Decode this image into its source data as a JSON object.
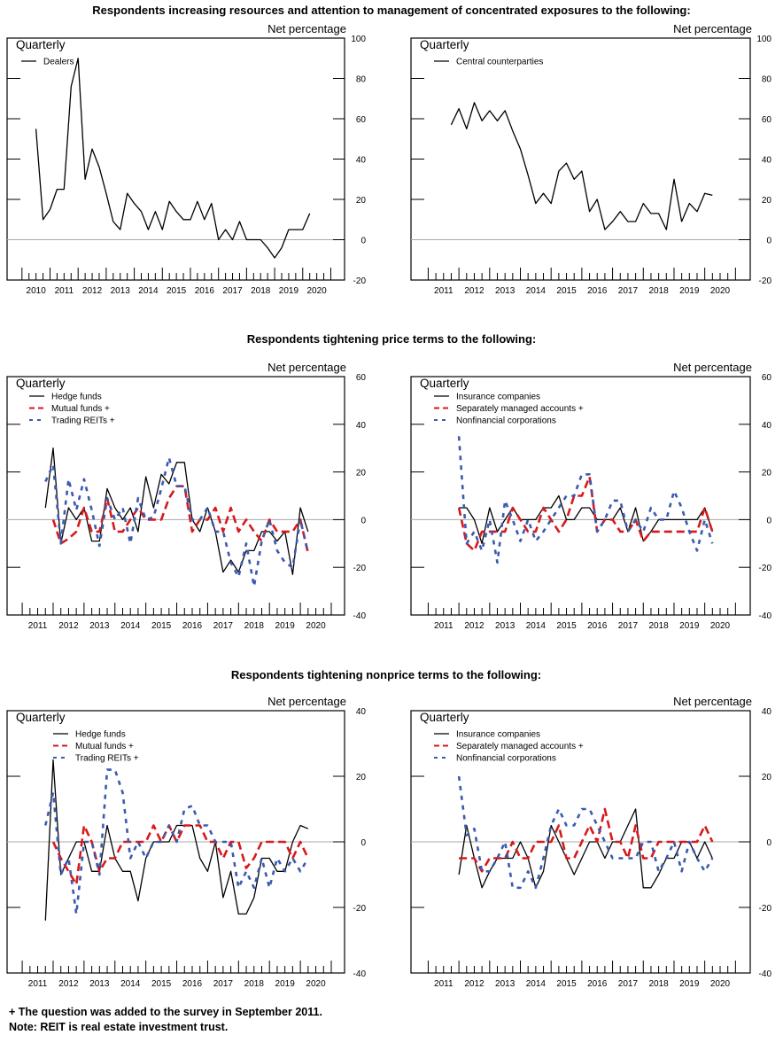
{
  "sections": [
    {
      "title": "Respondents increasing resources and attention to management of concentrated exposures to the following:"
    },
    {
      "title": "Respondents tightening price terms to the following:"
    },
    {
      "title": "Respondents tightening nonprice terms to the following:"
    }
  ],
  "footnotes": [
    "+ The question was added to the survey in September 2011.",
    "Note:  REIT is real estate investment trust."
  ],
  "colors": {
    "solid": "#000000",
    "red": "#d7191c",
    "blue": "#3a5aaf",
    "zero_line": "#aaaaaa"
  },
  "chart_data": [
    {
      "type": "line",
      "section": 0,
      "frequency_label": "Quarterly",
      "ylabel": "Net percentage",
      "ylim": [
        -20,
        100
      ],
      "yticks": [
        -20,
        0,
        20,
        40,
        60,
        80,
        100
      ],
      "xticks": [
        "2010",
        "2011",
        "2012",
        "2013",
        "2014",
        "2015",
        "2016",
        "2017",
        "2018",
        "2019",
        "2020"
      ],
      "grid": false,
      "legend": "top-left",
      "series": [
        {
          "name": "Dealers",
          "start": "2010-Q2",
          "style": "solid",
          "color": "#000000",
          "values": [
            55,
            10,
            15,
            25,
            25,
            76,
            90,
            30,
            45,
            36,
            23,
            9,
            5,
            23,
            18,
            14,
            5,
            14,
            5,
            19,
            14,
            10,
            10,
            19,
            10,
            18,
            0,
            5,
            0,
            9,
            0,
            0,
            0,
            -4,
            -9,
            -4,
            5,
            5,
            5,
            13
          ]
        }
      ]
    },
    {
      "type": "line",
      "section": 0,
      "frequency_label": "Quarterly",
      "ylabel": "Net percentage",
      "ylim": [
        -20,
        100
      ],
      "yticks": [
        -20,
        0,
        20,
        40,
        60,
        80,
        100
      ],
      "xticks": [
        "2011",
        "2012",
        "2013",
        "2014",
        "2015",
        "2016",
        "2017",
        "2018",
        "2019",
        "2020"
      ],
      "grid": false,
      "legend": "top-left",
      "series": [
        {
          "name": "Central counterparties",
          "start": "2011-Q3",
          "style": "solid",
          "color": "#000000",
          "values": [
            57,
            65,
            55,
            68,
            59,
            64,
            59,
            64,
            54,
            45,
            32,
            18,
            23,
            18,
            34,
            38,
            30,
            34,
            14,
            20,
            5,
            9,
            14,
            9,
            9,
            18,
            13,
            13,
            5,
            30,
            9,
            18,
            14,
            23,
            22
          ]
        }
      ]
    },
    {
      "type": "line",
      "section": 1,
      "frequency_label": "Quarterly",
      "ylabel": "Net percentage",
      "ylim": [
        -40,
        60
      ],
      "yticks": [
        -40,
        -20,
        0,
        20,
        40,
        60
      ],
      "xticks": [
        "2011",
        "2012",
        "2013",
        "2014",
        "2015",
        "2016",
        "2017",
        "2018",
        "2019",
        "2020"
      ],
      "grid": false,
      "legend": "top-left",
      "series": [
        {
          "name": "Hedge funds",
          "start": "2011-Q3",
          "style": "solid",
          "color": "#000000",
          "values": [
            5,
            30,
            -10,
            5,
            0,
            5,
            -9,
            -9,
            13,
            5,
            0,
            5,
            -5,
            18,
            5,
            19,
            15,
            24,
            24,
            0,
            -5,
            5,
            -5,
            -22,
            -17,
            -22,
            -13,
            -13,
            -5,
            -5,
            -9,
            -5,
            -23,
            5,
            -5
          ]
        },
        {
          "name": "Mutual funds +",
          "start": "2011-Q4",
          "style": "long-dash",
          "color": "#d7191c",
          "values": [
            0,
            -10,
            -8,
            -5,
            5,
            -5,
            -5,
            9,
            -5,
            -5,
            0,
            5,
            0,
            0,
            0,
            9,
            14,
            14,
            -5,
            0,
            0,
            5,
            -5,
            5,
            -5,
            0,
            -5,
            -9,
            0,
            -5,
            -5,
            -5,
            0,
            -14
          ]
        },
        {
          "name": "Trading REITs +",
          "start": "2011-Q3",
          "style": "short-dash",
          "color": "#3a5aaf",
          "values": [
            16,
            23,
            -10,
            17,
            4,
            17,
            4,
            -11,
            9,
            0,
            5,
            -10,
            9,
            0,
            1,
            13,
            26,
            14,
            14,
            0,
            0,
            5,
            -5,
            -5,
            -18,
            -24,
            -10,
            -28,
            -9,
            0,
            -13,
            -18,
            -20,
            0,
            -14
          ]
        }
      ]
    },
    {
      "type": "line",
      "section": 1,
      "frequency_label": "Quarterly",
      "ylabel": "Net percentage",
      "ylim": [
        -40,
        60
      ],
      "yticks": [
        -40,
        -20,
        0,
        20,
        40,
        60
      ],
      "xticks": [
        "2011",
        "2012",
        "2013",
        "2014",
        "2015",
        "2016",
        "2017",
        "2018",
        "2019",
        "2020"
      ],
      "grid": false,
      "legend": "top-left",
      "series": [
        {
          "name": "Insurance companies",
          "start": "2011-Q4",
          "style": "solid",
          "color": "#000000",
          "values": [
            5,
            5,
            0,
            -10,
            5,
            -5,
            0,
            5,
            0,
            0,
            0,
            5,
            5,
            10,
            0,
            0,
            5,
            5,
            0,
            0,
            0,
            5,
            -5,
            5,
            -9,
            -5,
            0,
            0,
            0,
            0,
            0,
            0,
            5,
            -5
          ]
        },
        {
          "name": "Separately managed accounts +",
          "start": "2011-Q4",
          "style": "long-dash",
          "color": "#d7191c",
          "values": [
            5,
            -10,
            -13,
            -5,
            -5,
            -5,
            -5,
            5,
            0,
            -5,
            -5,
            5,
            0,
            -5,
            0,
            10,
            10,
            18,
            -5,
            0,
            0,
            -5,
            -5,
            0,
            -9,
            -5,
            -5,
            -5,
            -5,
            -5,
            -5,
            -5,
            5,
            -5
          ]
        },
        {
          "name": "Nonfinancial corporations",
          "start": "2011-Q4",
          "style": "short-dash",
          "color": "#3a5aaf",
          "values": [
            35,
            -10,
            -5,
            -13,
            0,
            -18,
            8,
            0,
            -9,
            0,
            -9,
            -5,
            0,
            5,
            10,
            10,
            19,
            19,
            -5,
            0,
            8,
            8,
            -5,
            0,
            -5,
            5,
            0,
            0,
            12,
            5,
            -5,
            -13,
            0,
            -10
          ]
        }
      ]
    },
    {
      "type": "line",
      "section": 2,
      "frequency_label": "Quarterly",
      "ylabel": "Net percentage",
      "ylim": [
        -40,
        40
      ],
      "yticks": [
        -40,
        -20,
        0,
        20,
        40
      ],
      "xticks": [
        "2011",
        "2012",
        "2013",
        "2014",
        "2015",
        "2016",
        "2017",
        "2018",
        "2019",
        "2020"
      ],
      "grid": false,
      "legend": "top-left",
      "series": [
        {
          "name": "Hedge funds",
          "start": "2011-Q3",
          "style": "solid",
          "color": "#000000",
          "values": [
            -24,
            25,
            -10,
            -5,
            0,
            0,
            -9,
            -9,
            5,
            -5,
            -9,
            -9,
            -18,
            -5,
            0,
            0,
            0,
            5,
            5,
            5,
            -5,
            -9,
            0,
            -17,
            -9,
            -22,
            -22,
            -17,
            -5,
            -5,
            -9,
            -9,
            0,
            5,
            4
          ]
        },
        {
          "name": "Mutual funds +",
          "start": "2011-Q4",
          "style": "long-dash",
          "color": "#d7191c",
          "values": [
            0,
            -5,
            -9,
            -13,
            5,
            0,
            -9,
            -5,
            -5,
            0,
            0,
            0,
            0,
            5,
            0,
            5,
            0,
            5,
            5,
            5,
            0,
            0,
            -5,
            0,
            0,
            -8,
            -5,
            0,
            0,
            0,
            0,
            -5,
            0,
            -5
          ]
        },
        {
          "name": "Trading REITs +",
          "start": "2011-Q3",
          "style": "short-dash",
          "color": "#3a5aaf",
          "values": [
            5,
            15,
            -10,
            -5,
            -22,
            0,
            0,
            -10,
            22,
            22,
            15,
            -5,
            0,
            -5,
            0,
            0,
            5,
            0,
            10,
            11,
            5,
            5,
            0,
            0,
            0,
            -14,
            -9,
            -14,
            -5,
            -14,
            -5,
            -9,
            -5,
            -9,
            -5
          ]
        }
      ]
    },
    {
      "type": "line",
      "section": 2,
      "frequency_label": "Quarterly",
      "ylabel": "Net percentage",
      "ylim": [
        -40,
        40
      ],
      "yticks": [
        -40,
        -20,
        0,
        20,
        40
      ],
      "xticks": [
        "2011",
        "2012",
        "2013",
        "2014",
        "2015",
        "2016",
        "2017",
        "2018",
        "2019",
        "2020"
      ],
      "grid": false,
      "legend": "top-left",
      "series": [
        {
          "name": "Insurance companies",
          "start": "2011-Q4",
          "style": "solid",
          "color": "#000000",
          "values": [
            -10,
            5,
            -5,
            -14,
            -9,
            -5,
            -5,
            -5,
            0,
            -5,
            -14,
            -9,
            5,
            0,
            -5,
            -10,
            -5,
            0,
            0,
            -5,
            0,
            0,
            5,
            10,
            -14,
            -14,
            -10,
            -5,
            -5,
            0,
            0,
            -5,
            0,
            -5
          ]
        },
        {
          "name": "Separately managed accounts +",
          "start": "2011-Q4",
          "style": "long-dash",
          "color": "#d7191c",
          "values": [
            -5,
            -5,
            -5,
            -9,
            -5,
            -5,
            -5,
            0,
            -5,
            -5,
            0,
            0,
            0,
            5,
            -5,
            -5,
            0,
            5,
            0,
            10,
            0,
            0,
            -5,
            5,
            -5,
            -5,
            0,
            0,
            0,
            0,
            0,
            0,
            5,
            0
          ]
        },
        {
          "name": "Nonfinancial corporations",
          "start": "2011-Q4",
          "style": "short-dash",
          "color": "#3a5aaf",
          "values": [
            20,
            2,
            4,
            -9,
            -9,
            -5,
            0,
            -14,
            -14,
            -9,
            -14,
            -5,
            5,
            10,
            5,
            5,
            10,
            10,
            5,
            0,
            -5,
            -5,
            -5,
            -5,
            0,
            0,
            -9,
            -5,
            0,
            -9,
            0,
            -5,
            -9,
            -5
          ]
        }
      ]
    }
  ]
}
